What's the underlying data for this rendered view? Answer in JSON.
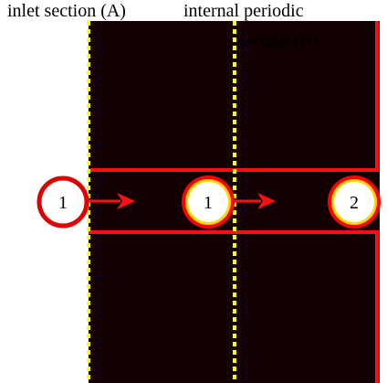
{
  "labels": {
    "inlet": "inlet section (A)",
    "internal_line1": "internal periodic",
    "internal_line2": "section (B)"
  },
  "nodes": [
    {
      "label": "1",
      "style": "plain"
    },
    {
      "label": "1",
      "style": "highlighted"
    },
    {
      "label": "2",
      "style": "highlighted"
    }
  ],
  "arrows": [
    {
      "from": 0,
      "to": 1
    },
    {
      "from": 1,
      "to": 2
    }
  ],
  "colors": {
    "background": "#130000",
    "channel": "#ff1010",
    "section_divider": "#ffff00",
    "node_fill": "#ffffff",
    "node_stroke_plain": "#e00000",
    "node_stroke_highlight_outer": "#ff0000",
    "node_stroke_highlight_inner": "#ffd700"
  }
}
